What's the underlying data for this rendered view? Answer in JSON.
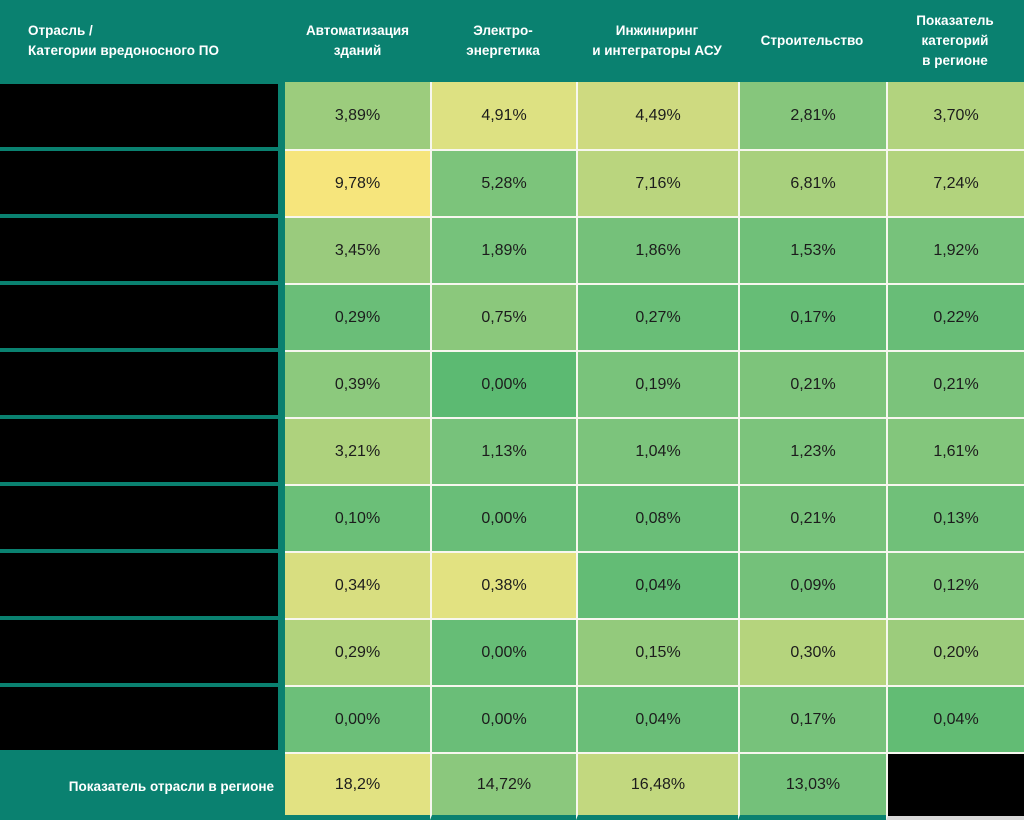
{
  "colors": {
    "teal": "#0A8170",
    "grid_line": "#F7F7EF",
    "header_text": "#FFFFFF",
    "value_text": "#1C1C1C",
    "redacted": "#000000",
    "bottom_strip_gray": "#D9D9D9",
    "scale_min_green": "#63BE7B",
    "scale_max_yellow": "#FFEB84"
  },
  "table": {
    "corner_header": "Отрасль /\nКатегории вредоносного ПО",
    "column_headers": [
      "Автоматизация\nзданий",
      "Электро-\nэнергетика",
      "Инжиниринг\nи интеграторы АСУ",
      "Строительство",
      "Показатель\nкатегорий\nв регионе"
    ],
    "rows": [
      {
        "label_redacted": true,
        "cells": [
          {
            "text": "3,89%",
            "bg": "#9CCC7D"
          },
          {
            "text": "4,91%",
            "bg": "#DDE182"
          },
          {
            "text": "4,49%",
            "bg": "#CEDA80"
          },
          {
            "text": "2,81%",
            "bg": "#86C67C"
          },
          {
            "text": "3,70%",
            "bg": "#B2D37E"
          }
        ]
      },
      {
        "label_redacted": true,
        "cells": [
          {
            "text": "9,78%",
            "bg": "#F6E57C"
          },
          {
            "text": "5,28%",
            "bg": "#7CC47B"
          },
          {
            "text": "7,16%",
            "bg": "#BAD57E"
          },
          {
            "text": "6,81%",
            "bg": "#A8D07D"
          },
          {
            "text": "7,24%",
            "bg": "#B2D37D"
          }
        ]
      },
      {
        "label_redacted": true,
        "cells": [
          {
            "text": "3,45%",
            "bg": "#9ACB7D"
          },
          {
            "text": "1,89%",
            "bg": "#76C27B"
          },
          {
            "text": "1,86%",
            "bg": "#75C17A"
          },
          {
            "text": "1,53%",
            "bg": "#70C079"
          },
          {
            "text": "1,92%",
            "bg": "#77C27B"
          }
        ]
      },
      {
        "label_redacted": true,
        "cells": [
          {
            "text": "0,29%",
            "bg": "#6ABE78"
          },
          {
            "text": "0,75%",
            "bg": "#8BC87C"
          },
          {
            "text": "0,27%",
            "bg": "#69BE77"
          },
          {
            "text": "0,17%",
            "bg": "#66BD76"
          },
          {
            "text": "0,22%",
            "bg": "#68BD77"
          }
        ]
      },
      {
        "label_redacted": true,
        "cells": [
          {
            "text": "0,39%",
            "bg": "#8CC97D"
          },
          {
            "text": "0,00%",
            "bg": "#5CBA72"
          },
          {
            "text": "0,19%",
            "bg": "#79C37B"
          },
          {
            "text": "0,21%",
            "bg": "#7DC47B"
          },
          {
            "text": "0,21%",
            "bg": "#7BC37B"
          }
        ]
      },
      {
        "label_redacted": true,
        "cells": [
          {
            "text": "3,21%",
            "bg": "#AED27D"
          },
          {
            "text": "1,13%",
            "bg": "#77C27B"
          },
          {
            "text": "1,04%",
            "bg": "#7CC47C"
          },
          {
            "text": "1,23%",
            "bg": "#7CC47C"
          },
          {
            "text": "1,61%",
            "bg": "#83C67C"
          }
        ]
      },
      {
        "label_redacted": true,
        "cells": [
          {
            "text": "0,10%",
            "bg": "#6BBF78"
          },
          {
            "text": "0,00%",
            "bg": "#69BE78"
          },
          {
            "text": "0,08%",
            "bg": "#6ABE78"
          },
          {
            "text": "0,21%",
            "bg": "#77C27B"
          },
          {
            "text": "0,13%",
            "bg": "#70C079"
          }
        ]
      },
      {
        "label_redacted": true,
        "cells": [
          {
            "text": "0,34%",
            "bg": "#D8DE80"
          },
          {
            "text": "0,38%",
            "bg": "#E2E281"
          },
          {
            "text": "0,04%",
            "bg": "#63BC75"
          },
          {
            "text": "0,09%",
            "bg": "#74C17A"
          },
          {
            "text": "0,12%",
            "bg": "#7FC57C"
          }
        ]
      },
      {
        "label_redacted": true,
        "cells": [
          {
            "text": "0,29%",
            "bg": "#B2D37D"
          },
          {
            "text": "0,00%",
            "bg": "#66BD76"
          },
          {
            "text": "0,15%",
            "bg": "#93CA7C"
          },
          {
            "text": "0,30%",
            "bg": "#B5D47D"
          },
          {
            "text": "0,20%",
            "bg": "#9CCC7C"
          }
        ]
      },
      {
        "label_redacted": true,
        "cells": [
          {
            "text": "0,00%",
            "bg": "#6CBF79"
          },
          {
            "text": "0,00%",
            "bg": "#6ABE78"
          },
          {
            "text": "0,04%",
            "bg": "#6ABE78"
          },
          {
            "text": "0,17%",
            "bg": "#77C27B"
          },
          {
            "text": "0,04%",
            "bg": "#62BC74"
          }
        ]
      },
      {
        "label": "Показатель отрасли в регионе",
        "footer": true,
        "cells": [
          {
            "text": "18,2%",
            "bg": "#E2E282"
          },
          {
            "text": "14,72%",
            "bg": "#8BC87D"
          },
          {
            "text": "16,48%",
            "bg": "#C2D87F"
          },
          {
            "text": "13,03%",
            "bg": "#74C17A"
          },
          {
            "text": "",
            "bg": "#000000",
            "redacted": true
          }
        ]
      }
    ]
  },
  "chart_data": {
    "type": "heatmap",
    "title": "",
    "row_label_header": "Отрасль / Категории вредоносного ПО",
    "columns": [
      "Автоматизация зданий",
      "Электро-энергетика",
      "Инжиниринг и интеграторы АСУ",
      "Строительство",
      "Показатель категорий в регионе"
    ],
    "rows": [
      {
        "label": "[redacted]",
        "values": [
          3.89,
          4.91,
          4.49,
          2.81,
          3.7
        ]
      },
      {
        "label": "[redacted]",
        "values": [
          9.78,
          5.28,
          7.16,
          6.81,
          7.24
        ]
      },
      {
        "label": "[redacted]",
        "values": [
          3.45,
          1.89,
          1.86,
          1.53,
          1.92
        ]
      },
      {
        "label": "[redacted]",
        "values": [
          0.29,
          0.75,
          0.27,
          0.17,
          0.22
        ]
      },
      {
        "label": "[redacted]",
        "values": [
          0.39,
          0.0,
          0.19,
          0.21,
          0.21
        ]
      },
      {
        "label": "[redacted]",
        "values": [
          3.21,
          1.13,
          1.04,
          1.23,
          1.61
        ]
      },
      {
        "label": "[redacted]",
        "values": [
          0.1,
          0.0,
          0.08,
          0.21,
          0.13
        ]
      },
      {
        "label": "[redacted]",
        "values": [
          0.34,
          0.38,
          0.04,
          0.09,
          0.12
        ]
      },
      {
        "label": "[redacted]",
        "values": [
          0.29,
          0.0,
          0.15,
          0.3,
          0.2
        ]
      },
      {
        "label": "[redacted]",
        "values": [
          0.0,
          0.0,
          0.04,
          0.17,
          0.04
        ]
      }
    ],
    "footer_row": {
      "label": "Показатель отрасли в регионе",
      "values": [
        18.2,
        14.72,
        16.48,
        13.03,
        null
      ],
      "last_cell_redacted": true
    },
    "value_unit": "%",
    "value_format": "comma decimal separator",
    "legend": "cell color scale green (low) to yellow (high)"
  }
}
